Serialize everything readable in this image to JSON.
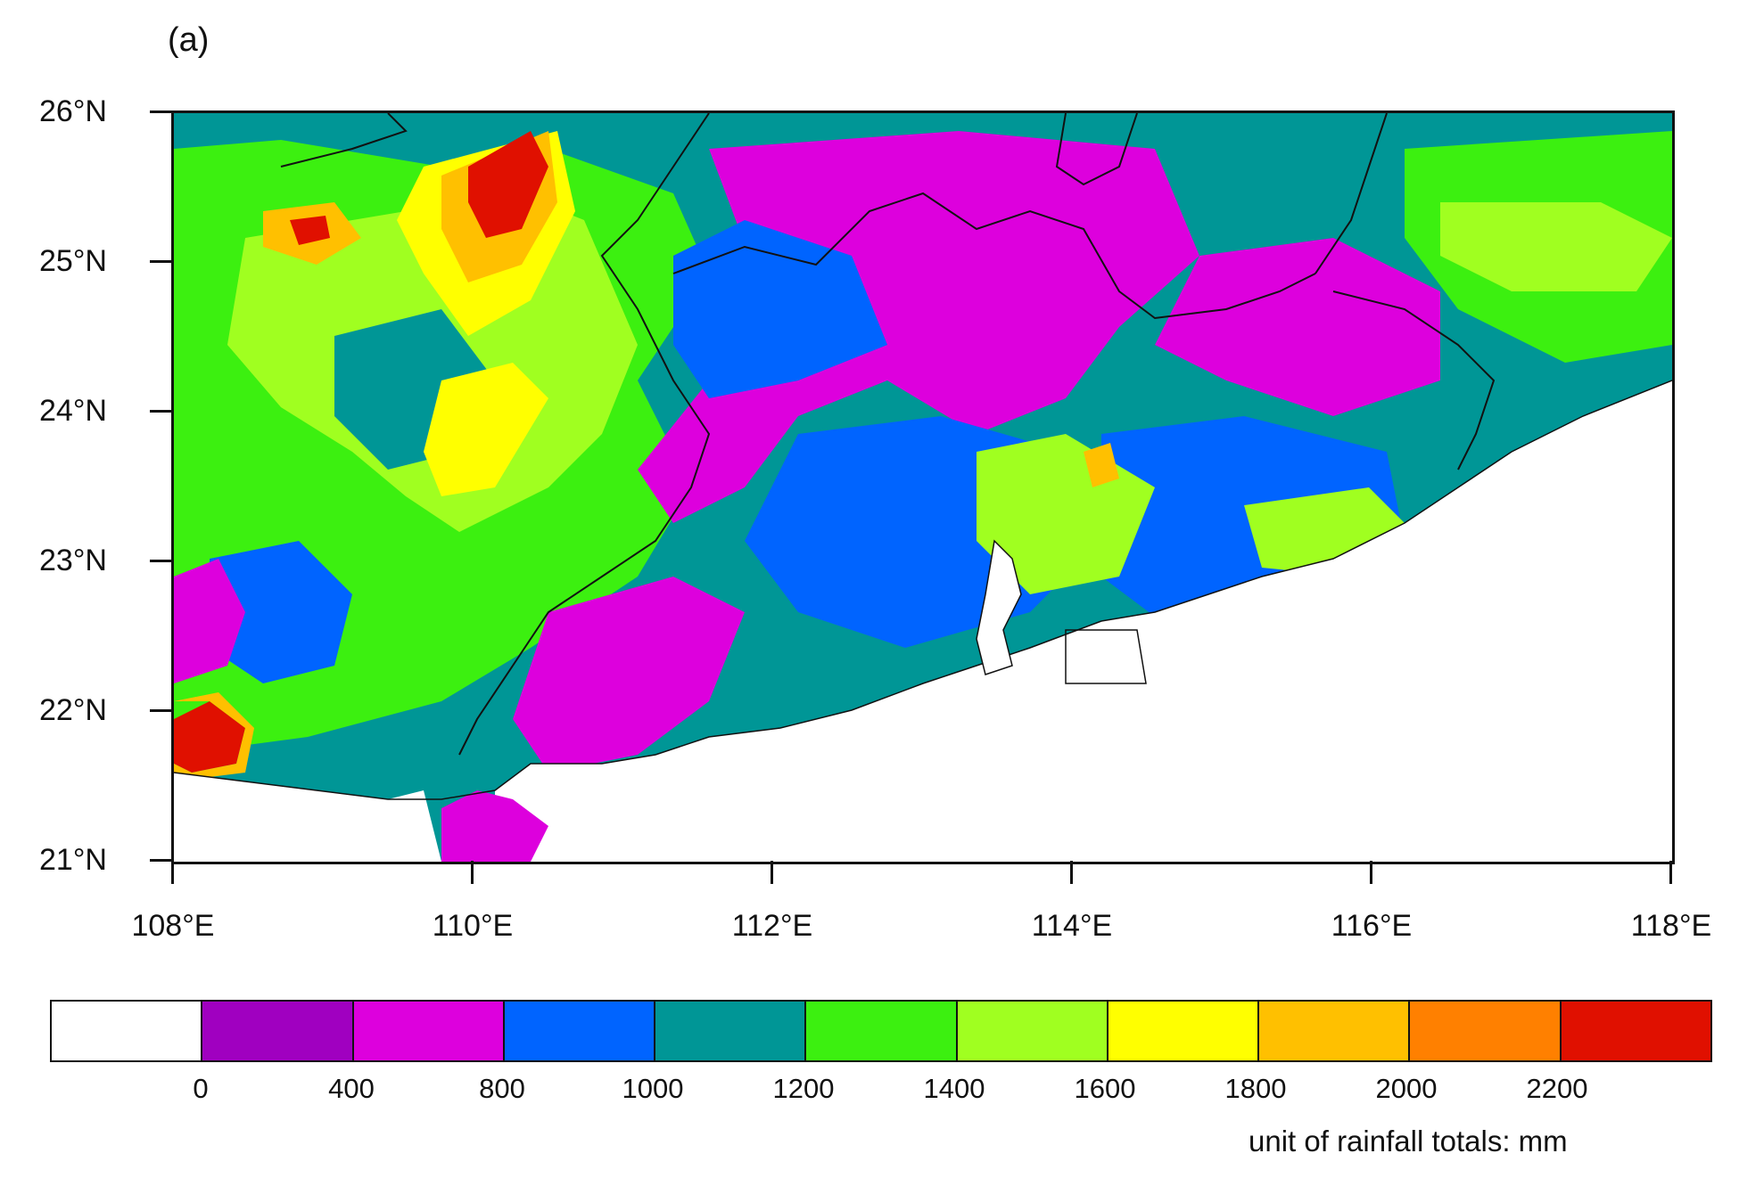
{
  "panel_label": "(a)",
  "map": {
    "lat_labels": [
      "26°N",
      "25°N",
      "24°N",
      "23°N",
      "22°N",
      "21°N"
    ],
    "lon_labels": [
      "108°E",
      "110°E",
      "112°E",
      "114°E",
      "116°E",
      "118°E"
    ],
    "lat_range": [
      21,
      26
    ],
    "lon_range": [
      108,
      118
    ]
  },
  "colorbar": {
    "labels": [
      "0",
      "400",
      "800",
      "1000",
      "1200",
      "1400",
      "1600",
      "1800",
      "2000",
      "2200"
    ],
    "colors": [
      "#ffffff",
      "#a000c0",
      "#dd00dd",
      "#0064ff",
      "#009696",
      "#3cf010",
      "#a0ff20",
      "#ffff00",
      "#ffc000",
      "#ff8000",
      "#e01000"
    ],
    "unit_note": "unit of rainfall totals: mm"
  }
}
